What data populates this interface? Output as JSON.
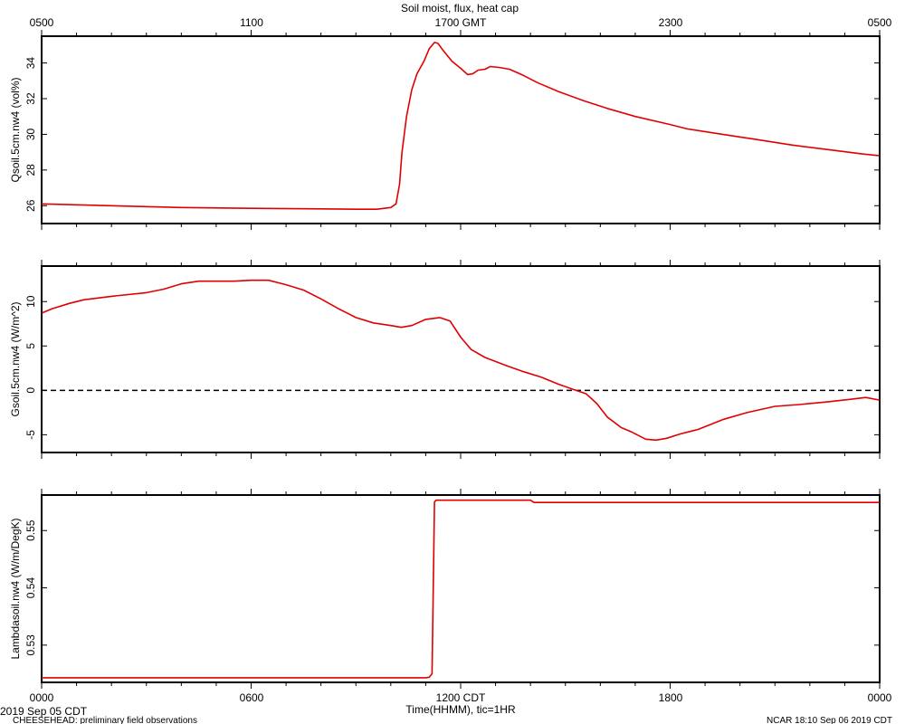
{
  "page": {
    "title": "Soil moist, flux, heat cap",
    "top_axis_ticks": [
      "0500",
      "1100",
      "1700 GMT",
      "2300",
      "0500"
    ],
    "bottom_axis_ticks": [
      "0000",
      "0600",
      "1200 CDT",
      "1800",
      "0000"
    ],
    "xlabel": "Time(HHMM), tic=1HR",
    "start_date": "2019 Sep 05 CDT",
    "footer_left": "CHEESEHEAD: preliminary field observations",
    "footer_right": "NCAR 18:10 Sep 06 2019 CDT",
    "line_color": "#e00000"
  },
  "chart_data": [
    {
      "type": "line",
      "title": "Soil moist, flux, heat cap",
      "ylabel": "Qsoil.5cm.nw4 (vol%)",
      "xlabel": "",
      "xlim": [
        0,
        24
      ],
      "ylim": [
        25,
        35.5
      ],
      "yticks": [
        26,
        28,
        30,
        32,
        34
      ],
      "x_unit": "hours since 0000 CDT",
      "series": [
        {
          "name": "",
          "points": [
            [
              0,
              26.1
            ],
            [
              2,
              26.0
            ],
            [
              4,
              25.9
            ],
            [
              6,
              25.85
            ],
            [
              8,
              25.82
            ],
            [
              9,
              25.8
            ],
            [
              9.6,
              25.8
            ],
            [
              10.0,
              25.9
            ],
            [
              10.15,
              26.1
            ],
            [
              10.25,
              27.2
            ],
            [
              10.32,
              29.0
            ],
            [
              10.45,
              31.0
            ],
            [
              10.6,
              32.5
            ],
            [
              10.75,
              33.4
            ],
            [
              10.95,
              34.1
            ],
            [
              11.1,
              34.8
            ],
            [
              11.25,
              35.15
            ],
            [
              11.35,
              35.1
            ],
            [
              11.5,
              34.7
            ],
            [
              11.75,
              34.1
            ],
            [
              12.0,
              33.7
            ],
            [
              12.2,
              33.35
            ],
            [
              12.35,
              33.4
            ],
            [
              12.5,
              33.6
            ],
            [
              12.7,
              33.65
            ],
            [
              12.85,
              33.8
            ],
            [
              13.1,
              33.75
            ],
            [
              13.4,
              33.65
            ],
            [
              13.8,
              33.3
            ],
            [
              14.2,
              32.9
            ],
            [
              14.8,
              32.4
            ],
            [
              15.5,
              31.9
            ],
            [
              16.2,
              31.45
            ],
            [
              17.0,
              31.0
            ],
            [
              18.0,
              30.55
            ],
            [
              18.5,
              30.3
            ],
            [
              19.5,
              30.0
            ],
            [
              20.5,
              29.7
            ],
            [
              21.5,
              29.4
            ],
            [
              22.5,
              29.15
            ],
            [
              23.5,
              28.9
            ],
            [
              24.0,
              28.8
            ]
          ]
        }
      ]
    },
    {
      "type": "line",
      "ylabel": "Gsoil.5cm.nw4 (W/m^2)",
      "xlabel": "",
      "xlim": [
        0,
        24
      ],
      "ylim": [
        -7,
        14
      ],
      "yticks": [
        -5,
        0,
        5,
        10
      ],
      "zero_line": true,
      "x_unit": "hours since 0000 CDT",
      "series": [
        {
          "name": "",
          "points": [
            [
              0,
              8.7
            ],
            [
              0.3,
              9.2
            ],
            [
              0.8,
              9.8
            ],
            [
              1.2,
              10.2
            ],
            [
              2.0,
              10.6
            ],
            [
              3.0,
              11.0
            ],
            [
              3.5,
              11.4
            ],
            [
              4.0,
              12.0
            ],
            [
              4.5,
              12.3
            ],
            [
              5.0,
              12.3
            ],
            [
              5.5,
              12.3
            ],
            [
              6.0,
              12.4
            ],
            [
              6.5,
              12.4
            ],
            [
              7.0,
              11.9
            ],
            [
              7.5,
              11.3
            ],
            [
              8.0,
              10.3
            ],
            [
              8.5,
              9.2
            ],
            [
              9.0,
              8.2
            ],
            [
              9.5,
              7.6
            ],
            [
              10.0,
              7.3
            ],
            [
              10.3,
              7.1
            ],
            [
              10.6,
              7.3
            ],
            [
              11.0,
              8.0
            ],
            [
              11.4,
              8.2
            ],
            [
              11.7,
              7.8
            ],
            [
              12.0,
              6.0
            ],
            [
              12.3,
              4.6
            ],
            [
              12.7,
              3.7
            ],
            [
              13.3,
              2.8
            ],
            [
              13.8,
              2.1
            ],
            [
              14.3,
              1.5
            ],
            [
              14.8,
              0.7
            ],
            [
              15.3,
              0.0
            ],
            [
              15.6,
              -0.4
            ],
            [
              15.9,
              -1.5
            ],
            [
              16.2,
              -3.0
            ],
            [
              16.6,
              -4.2
            ],
            [
              16.9,
              -4.7
            ],
            [
              17.3,
              -5.5
            ],
            [
              17.6,
              -5.6
            ],
            [
              17.9,
              -5.4
            ],
            [
              18.3,
              -4.9
            ],
            [
              18.8,
              -4.4
            ],
            [
              19.5,
              -3.3
            ],
            [
              20.2,
              -2.5
            ],
            [
              21.0,
              -1.8
            ],
            [
              21.7,
              -1.6
            ],
            [
              22.5,
              -1.3
            ],
            [
              23.2,
              -1.0
            ],
            [
              23.6,
              -0.8
            ],
            [
              24.0,
              -1.1
            ]
          ]
        }
      ]
    },
    {
      "type": "line",
      "ylabel": "Lambdasoil.nw4 (W/m/DegK)",
      "xlabel": "",
      "xlim": [
        0,
        24
      ],
      "ylim": [
        0.5235,
        0.5562
      ],
      "yticks": [
        0.53,
        0.54,
        0.55
      ],
      "x_unit": "hours since 0000 CDT",
      "series": [
        {
          "name": "",
          "points": [
            [
              0,
              0.5243
            ],
            [
              11.0,
              0.5243
            ],
            [
              11.1,
              0.5244
            ],
            [
              11.18,
              0.525
            ],
            [
              11.25,
              0.555
            ],
            [
              11.3,
              0.5553
            ],
            [
              14.0,
              0.5553
            ],
            [
              14.1,
              0.5549
            ],
            [
              14.2,
              0.5549
            ],
            [
              24.0,
              0.5549
            ]
          ]
        }
      ]
    }
  ]
}
